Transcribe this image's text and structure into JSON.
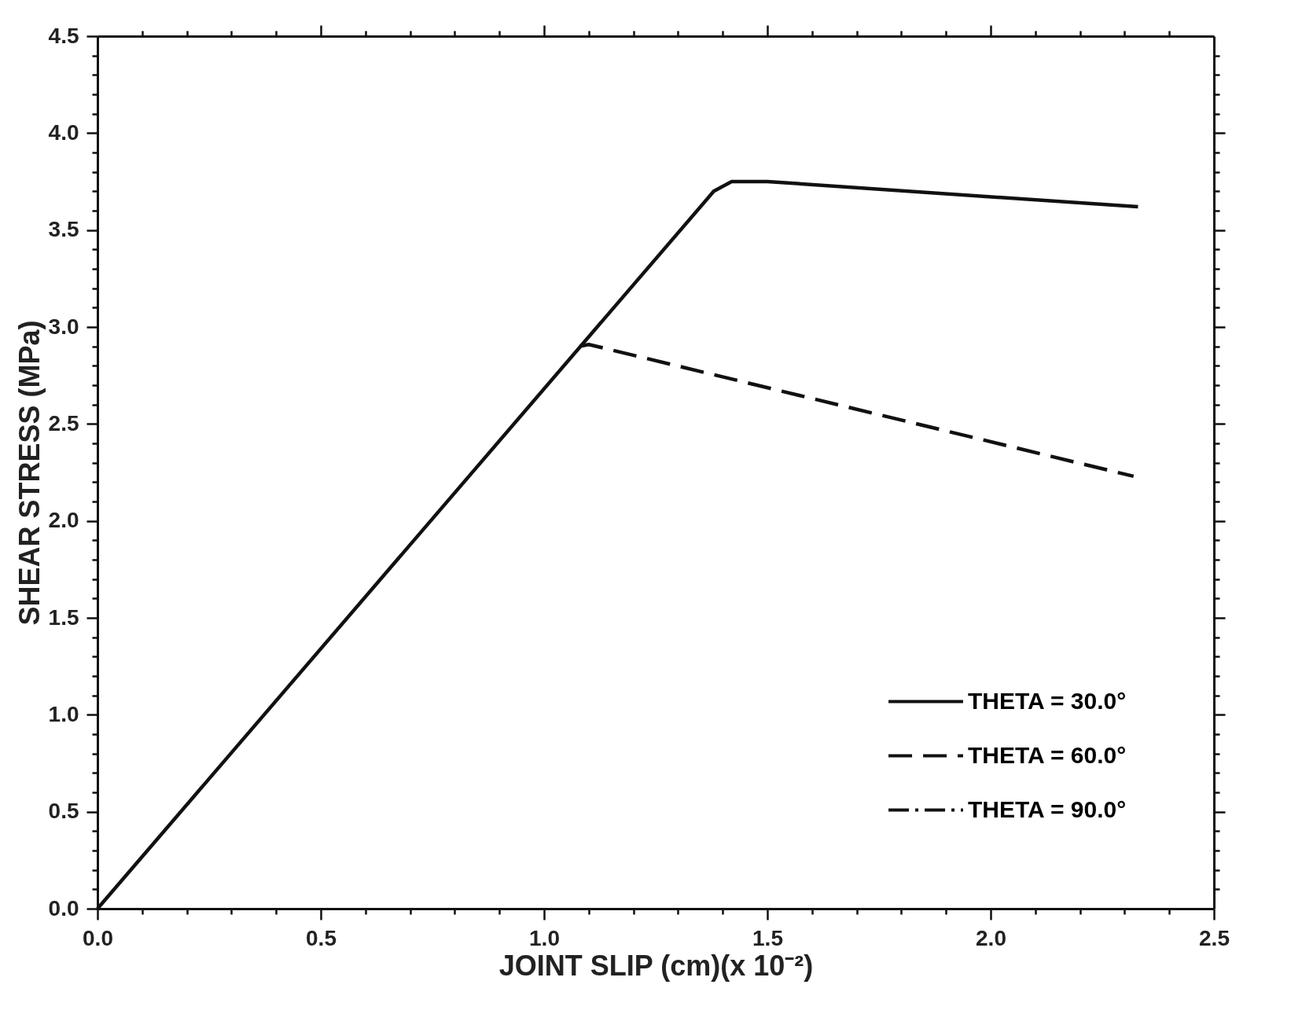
{
  "chart_data": {
    "type": "line",
    "xlabel": "JOINT SLIP (cm)(x 10⁻²)",
    "ylabel": "SHEAR STRESS (MPa)",
    "xlim": [
      0,
      2.5
    ],
    "ylim": [
      0,
      4.5
    ],
    "xticks": [
      {
        "value": 0,
        "label": "0.0"
      },
      0.5,
      {
        "value": 1,
        "label": "1.0"
      },
      1.5,
      {
        "value": 2,
        "label": "2.0"
      },
      2.5
    ],
    "yticks": [
      {
        "value": 0,
        "label": "0.0"
      },
      0.5,
      {
        "value": 1,
        "label": "1.0"
      },
      1.5,
      {
        "value": 2,
        "label": "2.0"
      },
      2.5,
      {
        "value": 3,
        "label": "3.0"
      },
      3.5,
      {
        "value": 4,
        "label": "4.0"
      },
      4.5
    ],
    "grid": false,
    "legend": "bottom right",
    "marker": "none",
    "series": [
      {
        "name": "THETA = 30.0°",
        "color": "#111111",
        "line_style": "solid",
        "x": [
          0,
          1.38,
          1.42,
          1.5,
          2.33
        ],
        "values": [
          0,
          3.7,
          3.75,
          3.75,
          3.62
        ]
      },
      {
        "name": "THETA = 60.0°",
        "color": "#111111",
        "line_style": "dashed",
        "x": [
          1.08,
          1.1,
          2.32
        ],
        "values": [
          2.9,
          2.91,
          2.23
        ]
      },
      {
        "name": "THETA = 90.0°",
        "color": "#111111",
        "line_style": "dotted"
      }
    ]
  }
}
